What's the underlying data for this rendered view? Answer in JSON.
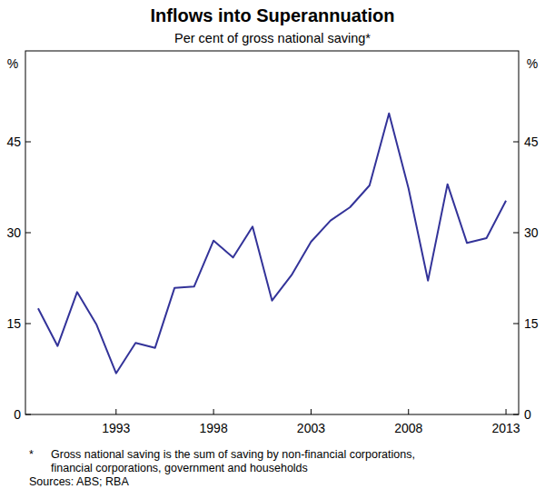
{
  "chart_data": {
    "type": "line",
    "title": "Inflows into Superannuation",
    "subtitle": "Per cent of gross national saving*",
    "y_unit": "%",
    "footnote_marker": "*",
    "footnote": [
      "Gross national saving is the sum of saving by non-financial corporations,",
      "financial corporations, government and households"
    ],
    "sources": "Sources: ABS; RBA",
    "x": [
      1989,
      1990,
      1991,
      1992,
      1993,
      1994,
      1995,
      1996,
      1997,
      1998,
      1999,
      2000,
      2001,
      2002,
      2003,
      2004,
      2005,
      2006,
      2007,
      2008,
      2009,
      2010,
      2011,
      2012,
      2013
    ],
    "series": [
      {
        "name": "Inflows into Superannuation",
        "color": "#333399",
        "values": [
          17.5,
          11.3,
          20.2,
          14.8,
          6.8,
          11.8,
          11.0,
          20.9,
          21.1,
          28.7,
          25.9,
          31.0,
          18.8,
          23.0,
          28.5,
          32.0,
          34.2,
          37.8,
          49.7,
          37.3,
          22.1,
          38.0,
          28.3,
          29.1,
          35.3
        ]
      }
    ],
    "xlim": [
      1988.35,
      2013.65
    ],
    "xticks": [
      1993,
      1998,
      2003,
      2008,
      2013
    ],
    "ylim": [
      0,
      60
    ],
    "yticks": [
      0,
      15,
      30,
      45
    ],
    "grid": false
  }
}
